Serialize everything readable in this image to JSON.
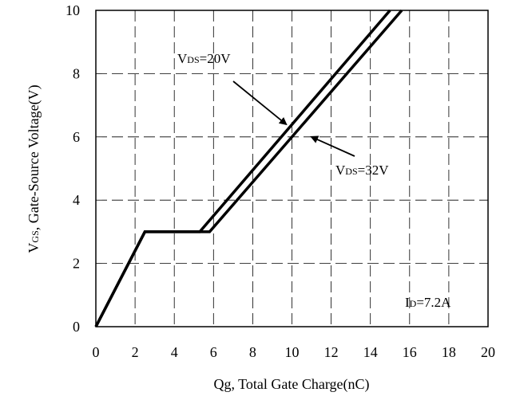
{
  "chart_data": {
    "type": "line",
    "xlabel": "Qg, Total Gate Charge(nC)",
    "ylabel_main": "V",
    "ylabel_sub": "GS",
    "ylabel_rest": ", Gate-Source Voltage(V)",
    "xlim": [
      0,
      20
    ],
    "ylim": [
      0,
      10
    ],
    "x_ticks": [
      0,
      2,
      4,
      6,
      8,
      10,
      12,
      14,
      16,
      18,
      20
    ],
    "y_ticks": [
      0,
      2,
      4,
      6,
      8,
      10
    ],
    "grid": true,
    "grid_style": "dashed",
    "series": [
      {
        "name": "VDS=20V",
        "x": [
          0,
          2.5,
          5.3,
          15.0
        ],
        "y": [
          0,
          3.0,
          3.0,
          10.0
        ]
      },
      {
        "name": "VDS=32V",
        "x": [
          0,
          2.5,
          5.8,
          15.6
        ],
        "y": [
          0,
          3.0,
          3.0,
          10.0
        ]
      }
    ],
    "annotations": [
      {
        "text_main": "V",
        "text_sub": "DS",
        "text_rest": "=20V",
        "arrow_to": {
          "x": 9.7,
          "y": 6.4
        }
      },
      {
        "text_main": "V",
        "text_sub": "DS",
        "text_rest": "=32V",
        "arrow_to": {
          "x": 11.0,
          "y": 6.0
        }
      },
      {
        "text_main": "I",
        "text_sub": "D",
        "text_rest": "=7.2A"
      }
    ]
  }
}
